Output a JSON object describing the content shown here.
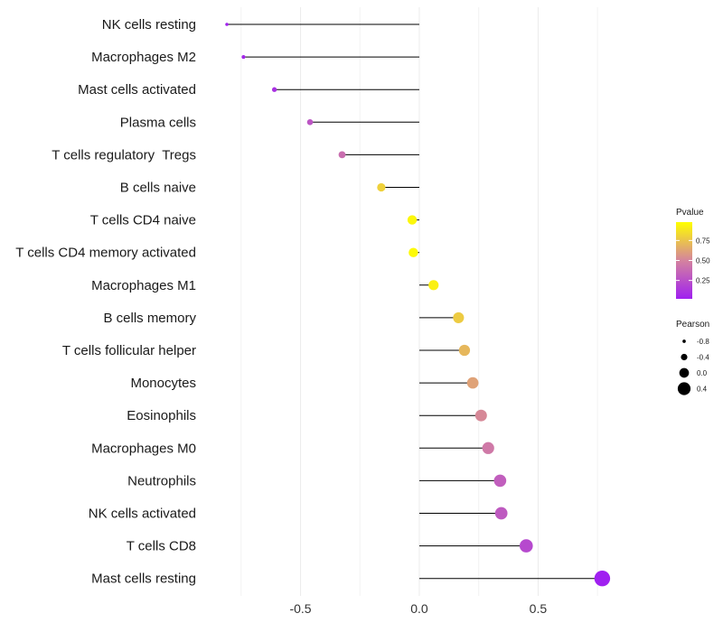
{
  "chart_data": {
    "type": "lollipop",
    "categories": [
      "NK cells resting",
      "Macrophages M2",
      "Mast cells activated",
      "Plasma cells",
      "T cells regulatory  Tregs",
      "B cells naive",
      "T cells CD4 naive",
      "T cells CD4 memory activated",
      "Macrophages M1",
      "B cells memory",
      "T cells follicular helper",
      "Monocytes",
      "Eosinophils",
      "Macrophages M0",
      "Neutrophils",
      "NK cells activated",
      "T cells CD8",
      "Mast cells resting"
    ],
    "pearson": [
      -0.81,
      -0.74,
      -0.61,
      -0.46,
      -0.325,
      -0.16,
      -0.03,
      -0.025,
      0.06,
      0.165,
      0.19,
      0.225,
      0.26,
      0.29,
      0.34,
      0.345,
      0.45,
      0.77
    ],
    "pvalue": [
      0.03,
      0.06,
      0.1,
      0.28,
      0.4,
      0.8,
      0.95,
      0.96,
      0.92,
      0.78,
      0.7,
      0.62,
      0.52,
      0.45,
      0.32,
      0.3,
      0.22,
      0.02
    ],
    "x_ticks": [
      -0.5,
      0.0,
      0.5
    ],
    "x_tick_labels": [
      "-0.5",
      "0.0",
      "0.5"
    ],
    "xlim": [
      -0.89,
      1.05
    ],
    "grid": true,
    "xlabel": "",
    "ylabel": "",
    "color_legend": {
      "title": "Pvalue",
      "ticks": [
        0.75,
        0.5,
        0.25
      ],
      "tick_labels": [
        "0.75",
        "0.50",
        "0.25"
      ],
      "range": [
        0.02,
        0.98
      ],
      "low_color": "#A020F0",
      "mid_color": "#D4839E",
      "high_color": "#FFFF00"
    },
    "size_legend": {
      "title": "Pearson",
      "values": [
        -0.8,
        -0.4,
        0.0,
        0.4
      ],
      "labels": [
        "-0.8",
        "-0.4",
        "0.0",
        "0.4"
      ]
    },
    "stem_color": "#000000"
  }
}
